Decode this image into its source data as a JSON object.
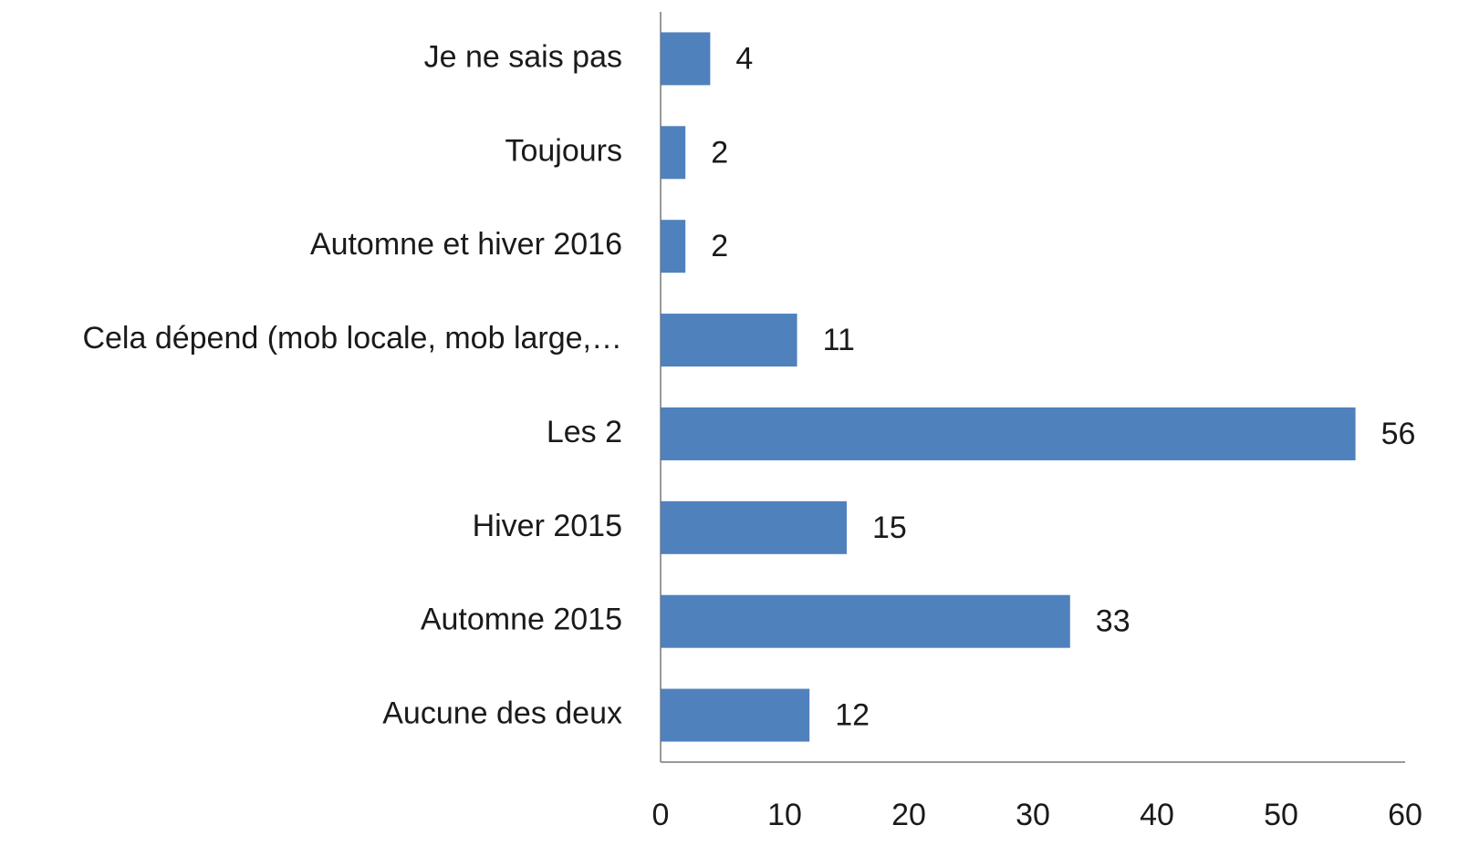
{
  "chart_data": {
    "type": "bar",
    "orientation": "horizontal",
    "categories": [
      "Je ne sais pas",
      "Toujours",
      "Automne et hiver 2016",
      "Cela dépend (mob locale, mob large,…",
      "Les 2",
      "Hiver 2015",
      "Automne 2015",
      "Aucune des deux"
    ],
    "values": [
      4,
      2,
      2,
      11,
      56,
      15,
      33,
      12
    ],
    "color": "#4f81bd",
    "xlim": [
      0,
      60
    ],
    "xticks": [
      0,
      10,
      20,
      30,
      40,
      50,
      60
    ],
    "grid": false
  }
}
